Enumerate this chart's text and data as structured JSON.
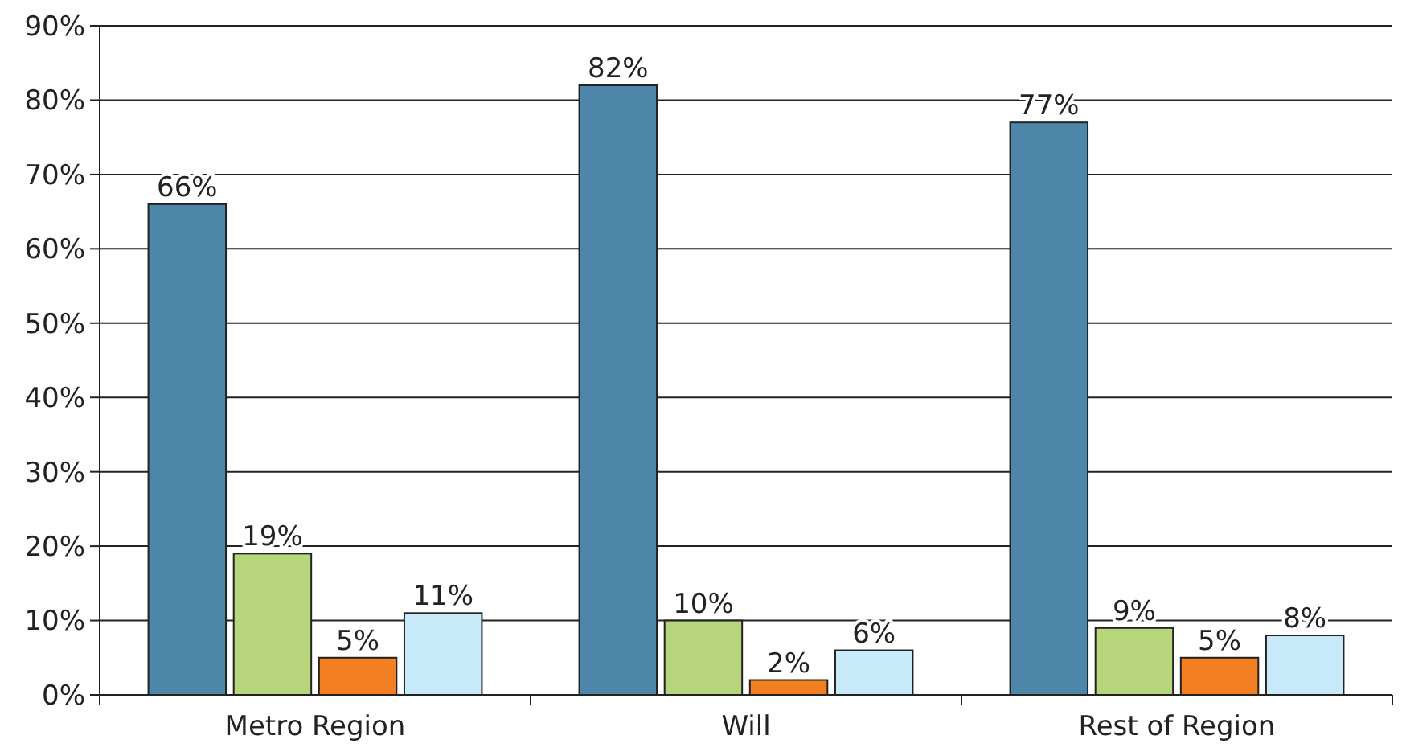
{
  "chart_data": {
    "type": "bar",
    "categories": [
      "Metro Region",
      "Will",
      "Rest of Region"
    ],
    "series": [
      {
        "color": "#4e86aa",
        "values": [
          66,
          82,
          77
        ],
        "value_labels": [
          "66%",
          "82%",
          "77%"
        ]
      },
      {
        "color": "#b7d57a",
        "values": [
          19,
          10,
          9
        ],
        "value_labels": [
          "19%",
          "10%",
          "9%"
        ]
      },
      {
        "color": "#f27f21",
        "values": [
          5,
          2,
          5
        ],
        "value_labels": [
          "5%",
          "2%",
          "5%"
        ]
      },
      {
        "color": "#c7e9f8",
        "values": [
          11,
          6,
          8
        ],
        "value_labels": [
          "11%",
          "6%",
          "8%"
        ]
      }
    ],
    "ylim": [
      0,
      90
    ],
    "yticks": [
      {
        "value": 0,
        "label": "0%"
      },
      {
        "value": 10,
        "label": "10%"
      },
      {
        "value": 20,
        "label": "20%"
      },
      {
        "value": 30,
        "label": "30%"
      },
      {
        "value": 40,
        "label": "40%"
      },
      {
        "value": 50,
        "label": "50%"
      },
      {
        "value": 60,
        "label": "60%"
      },
      {
        "value": 70,
        "label": "70%"
      },
      {
        "value": 80,
        "label": "80%"
      },
      {
        "value": 90,
        "label": "90%"
      }
    ],
    "grid": "y"
  }
}
